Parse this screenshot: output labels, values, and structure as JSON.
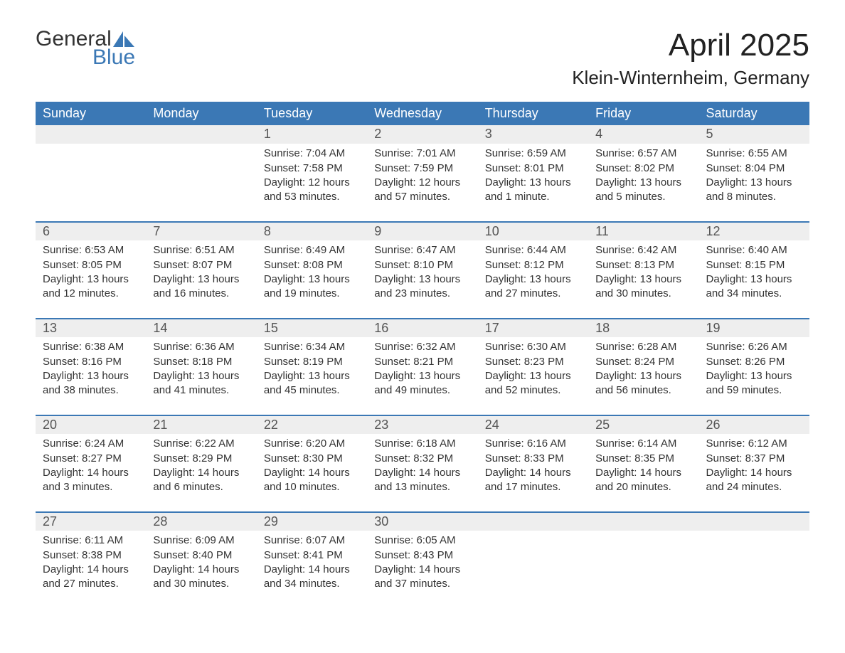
{
  "logo": {
    "word1": "General",
    "word2": "Blue"
  },
  "title": "April 2025",
  "subtitle": "Klein-Winternheim, Germany",
  "colors": {
    "header_bg": "#3b78b5",
    "header_text": "#ffffff",
    "daynum_bg": "#eeeeee",
    "border": "#3b78b5",
    "text": "#333333",
    "logo_blue": "#3b78b5"
  },
  "columns": [
    "Sunday",
    "Monday",
    "Tuesday",
    "Wednesday",
    "Thursday",
    "Friday",
    "Saturday"
  ],
  "weeks": [
    {
      "nums": [
        "",
        "",
        "1",
        "2",
        "3",
        "4",
        "5"
      ],
      "cells": [
        null,
        null,
        {
          "sunrise": "Sunrise: 7:04 AM",
          "sunset": "Sunset: 7:58 PM",
          "day1": "Daylight: 12 hours",
          "day2": "and 53 minutes."
        },
        {
          "sunrise": "Sunrise: 7:01 AM",
          "sunset": "Sunset: 7:59 PM",
          "day1": "Daylight: 12 hours",
          "day2": "and 57 minutes."
        },
        {
          "sunrise": "Sunrise: 6:59 AM",
          "sunset": "Sunset: 8:01 PM",
          "day1": "Daylight: 13 hours",
          "day2": "and 1 minute."
        },
        {
          "sunrise": "Sunrise: 6:57 AM",
          "sunset": "Sunset: 8:02 PM",
          "day1": "Daylight: 13 hours",
          "day2": "and 5 minutes."
        },
        {
          "sunrise": "Sunrise: 6:55 AM",
          "sunset": "Sunset: 8:04 PM",
          "day1": "Daylight: 13 hours",
          "day2": "and 8 minutes."
        }
      ]
    },
    {
      "nums": [
        "6",
        "7",
        "8",
        "9",
        "10",
        "11",
        "12"
      ],
      "cells": [
        {
          "sunrise": "Sunrise: 6:53 AM",
          "sunset": "Sunset: 8:05 PM",
          "day1": "Daylight: 13 hours",
          "day2": "and 12 minutes."
        },
        {
          "sunrise": "Sunrise: 6:51 AM",
          "sunset": "Sunset: 8:07 PM",
          "day1": "Daylight: 13 hours",
          "day2": "and 16 minutes."
        },
        {
          "sunrise": "Sunrise: 6:49 AM",
          "sunset": "Sunset: 8:08 PM",
          "day1": "Daylight: 13 hours",
          "day2": "and 19 minutes."
        },
        {
          "sunrise": "Sunrise: 6:47 AM",
          "sunset": "Sunset: 8:10 PM",
          "day1": "Daylight: 13 hours",
          "day2": "and 23 minutes."
        },
        {
          "sunrise": "Sunrise: 6:44 AM",
          "sunset": "Sunset: 8:12 PM",
          "day1": "Daylight: 13 hours",
          "day2": "and 27 minutes."
        },
        {
          "sunrise": "Sunrise: 6:42 AM",
          "sunset": "Sunset: 8:13 PM",
          "day1": "Daylight: 13 hours",
          "day2": "and 30 minutes."
        },
        {
          "sunrise": "Sunrise: 6:40 AM",
          "sunset": "Sunset: 8:15 PM",
          "day1": "Daylight: 13 hours",
          "day2": "and 34 minutes."
        }
      ]
    },
    {
      "nums": [
        "13",
        "14",
        "15",
        "16",
        "17",
        "18",
        "19"
      ],
      "cells": [
        {
          "sunrise": "Sunrise: 6:38 AM",
          "sunset": "Sunset: 8:16 PM",
          "day1": "Daylight: 13 hours",
          "day2": "and 38 minutes."
        },
        {
          "sunrise": "Sunrise: 6:36 AM",
          "sunset": "Sunset: 8:18 PM",
          "day1": "Daylight: 13 hours",
          "day2": "and 41 minutes."
        },
        {
          "sunrise": "Sunrise: 6:34 AM",
          "sunset": "Sunset: 8:19 PM",
          "day1": "Daylight: 13 hours",
          "day2": "and 45 minutes."
        },
        {
          "sunrise": "Sunrise: 6:32 AM",
          "sunset": "Sunset: 8:21 PM",
          "day1": "Daylight: 13 hours",
          "day2": "and 49 minutes."
        },
        {
          "sunrise": "Sunrise: 6:30 AM",
          "sunset": "Sunset: 8:23 PM",
          "day1": "Daylight: 13 hours",
          "day2": "and 52 minutes."
        },
        {
          "sunrise": "Sunrise: 6:28 AM",
          "sunset": "Sunset: 8:24 PM",
          "day1": "Daylight: 13 hours",
          "day2": "and 56 minutes."
        },
        {
          "sunrise": "Sunrise: 6:26 AM",
          "sunset": "Sunset: 8:26 PM",
          "day1": "Daylight: 13 hours",
          "day2": "and 59 minutes."
        }
      ]
    },
    {
      "nums": [
        "20",
        "21",
        "22",
        "23",
        "24",
        "25",
        "26"
      ],
      "cells": [
        {
          "sunrise": "Sunrise: 6:24 AM",
          "sunset": "Sunset: 8:27 PM",
          "day1": "Daylight: 14 hours",
          "day2": "and 3 minutes."
        },
        {
          "sunrise": "Sunrise: 6:22 AM",
          "sunset": "Sunset: 8:29 PM",
          "day1": "Daylight: 14 hours",
          "day2": "and 6 minutes."
        },
        {
          "sunrise": "Sunrise: 6:20 AM",
          "sunset": "Sunset: 8:30 PM",
          "day1": "Daylight: 14 hours",
          "day2": "and 10 minutes."
        },
        {
          "sunrise": "Sunrise: 6:18 AM",
          "sunset": "Sunset: 8:32 PM",
          "day1": "Daylight: 14 hours",
          "day2": "and 13 minutes."
        },
        {
          "sunrise": "Sunrise: 6:16 AM",
          "sunset": "Sunset: 8:33 PM",
          "day1": "Daylight: 14 hours",
          "day2": "and 17 minutes."
        },
        {
          "sunrise": "Sunrise: 6:14 AM",
          "sunset": "Sunset: 8:35 PM",
          "day1": "Daylight: 14 hours",
          "day2": "and 20 minutes."
        },
        {
          "sunrise": "Sunrise: 6:12 AM",
          "sunset": "Sunset: 8:37 PM",
          "day1": "Daylight: 14 hours",
          "day2": "and 24 minutes."
        }
      ]
    },
    {
      "nums": [
        "27",
        "28",
        "29",
        "30",
        "",
        "",
        ""
      ],
      "cells": [
        {
          "sunrise": "Sunrise: 6:11 AM",
          "sunset": "Sunset: 8:38 PM",
          "day1": "Daylight: 14 hours",
          "day2": "and 27 minutes."
        },
        {
          "sunrise": "Sunrise: 6:09 AM",
          "sunset": "Sunset: 8:40 PM",
          "day1": "Daylight: 14 hours",
          "day2": "and 30 minutes."
        },
        {
          "sunrise": "Sunrise: 6:07 AM",
          "sunset": "Sunset: 8:41 PM",
          "day1": "Daylight: 14 hours",
          "day2": "and 34 minutes."
        },
        {
          "sunrise": "Sunrise: 6:05 AM",
          "sunset": "Sunset: 8:43 PM",
          "day1": "Daylight: 14 hours",
          "day2": "and 37 minutes."
        },
        null,
        null,
        null
      ]
    }
  ]
}
